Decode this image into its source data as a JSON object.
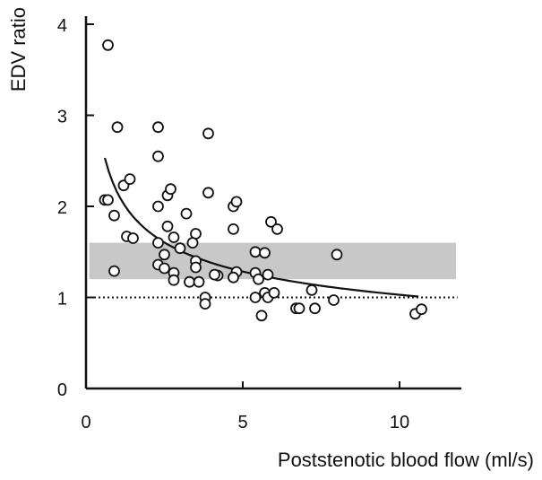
{
  "chart_data": {
    "type": "scatter",
    "title": "",
    "xlabel": "Poststenotic blood flow (ml/s)",
    "ylabel": "EDV ratio",
    "xlim": [
      0,
      12
    ],
    "ylim": [
      0,
      4
    ],
    "x_ticks": [
      "0",
      "5",
      "10"
    ],
    "y_ticks": [
      "0",
      "1",
      "2",
      "3",
      "4"
    ],
    "grid": false,
    "legend": "none",
    "reference_band": {
      "y_low": 1.2,
      "y_high": 1.6,
      "x_from": 0.1,
      "x_to": 11.8,
      "color": "#c8c8c8"
    },
    "reference_line": {
      "y": 1.0,
      "style": "dotted"
    },
    "fitted_curve": {
      "type": "power",
      "a": 2.15,
      "b": -0.32,
      "x_from": 0.6,
      "x_to": 10.6
    },
    "series": [
      {
        "marker": "open-circle",
        "points": [
          [
            0.7,
            3.77
          ],
          [
            0.9,
            1.9
          ],
          [
            0.9,
            1.29
          ],
          [
            1.0,
            2.87
          ],
          [
            0.6,
            2.07
          ],
          [
            0.7,
            2.07
          ],
          [
            1.2,
            2.23
          ],
          [
            1.4,
            2.3
          ],
          [
            1.3,
            1.67
          ],
          [
            1.5,
            1.65
          ],
          [
            2.3,
            2.87
          ],
          [
            2.3,
            2.55
          ],
          [
            2.6,
            2.12
          ],
          [
            2.6,
            1.78
          ],
          [
            2.7,
            2.19
          ],
          [
            2.3,
            2.0
          ],
          [
            2.8,
            1.66
          ],
          [
            2.3,
            1.6
          ],
          [
            2.5,
            1.47
          ],
          [
            2.3,
            1.36
          ],
          [
            2.5,
            1.32
          ],
          [
            2.8,
            1.27
          ],
          [
            2.8,
            1.19
          ],
          [
            3.0,
            1.54
          ],
          [
            3.2,
            1.92
          ],
          [
            3.5,
            1.7
          ],
          [
            3.4,
            1.6
          ],
          [
            3.5,
            1.4
          ],
          [
            3.5,
            1.33
          ],
          [
            3.3,
            1.17
          ],
          [
            3.6,
            1.17
          ],
          [
            3.8,
            1.0
          ],
          [
            3.8,
            0.93
          ],
          [
            3.9,
            2.8
          ],
          [
            3.9,
            2.15
          ],
          [
            4.2,
            1.24
          ],
          [
            4.1,
            1.25
          ],
          [
            4.7,
            2.0
          ],
          [
            4.8,
            2.05
          ],
          [
            4.7,
            1.75
          ],
          [
            4.8,
            1.28
          ],
          [
            4.7,
            1.22
          ],
          [
            5.4,
            1.5
          ],
          [
            5.4,
            1.27
          ],
          [
            5.5,
            1.2
          ],
          [
            5.4,
            1.0
          ],
          [
            5.7,
            1.49
          ],
          [
            5.7,
            1.05
          ],
          [
            5.8,
            1.25
          ],
          [
            5.8,
            1.0
          ],
          [
            5.6,
            0.8
          ],
          [
            5.9,
            1.83
          ],
          [
            6.1,
            1.75
          ],
          [
            6.0,
            1.05
          ],
          [
            6.7,
            0.88
          ],
          [
            6.8,
            0.88
          ],
          [
            7.2,
            1.08
          ],
          [
            7.3,
            0.88
          ],
          [
            7.9,
            0.97
          ],
          [
            8.0,
            1.47
          ],
          [
            10.5,
            0.82
          ],
          [
            10.7,
            0.87
          ]
        ]
      }
    ]
  }
}
